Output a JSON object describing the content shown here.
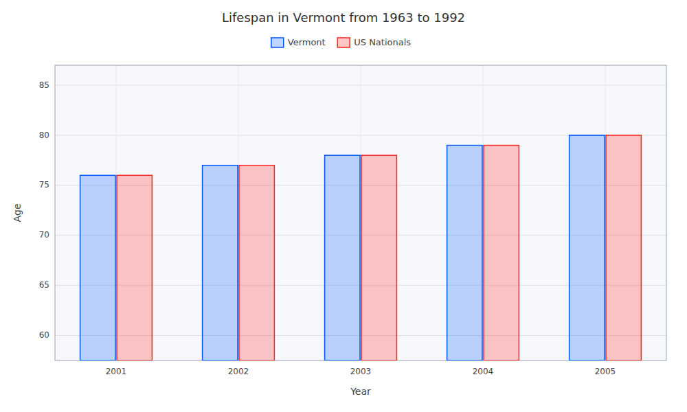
{
  "chart_data": {
    "type": "bar",
    "title": "Lifespan in Vermont from 1963 to 1992",
    "xlabel": "Year",
    "ylabel": "Age",
    "categories": [
      "2001",
      "2002",
      "2003",
      "2004",
      "2005"
    ],
    "series": [
      {
        "name": "Vermont",
        "color": "#0055ff",
        "values": [
          76,
          77,
          78,
          79,
          80
        ]
      },
      {
        "name": "US Nationals",
        "color": "#ff2222",
        "values": [
          76,
          77,
          78,
          79,
          80
        ]
      }
    ],
    "ylim": [
      57.5,
      87
    ],
    "yticks": [
      60,
      65,
      70,
      75,
      80,
      85
    ],
    "grid": true,
    "legend": "top"
  }
}
